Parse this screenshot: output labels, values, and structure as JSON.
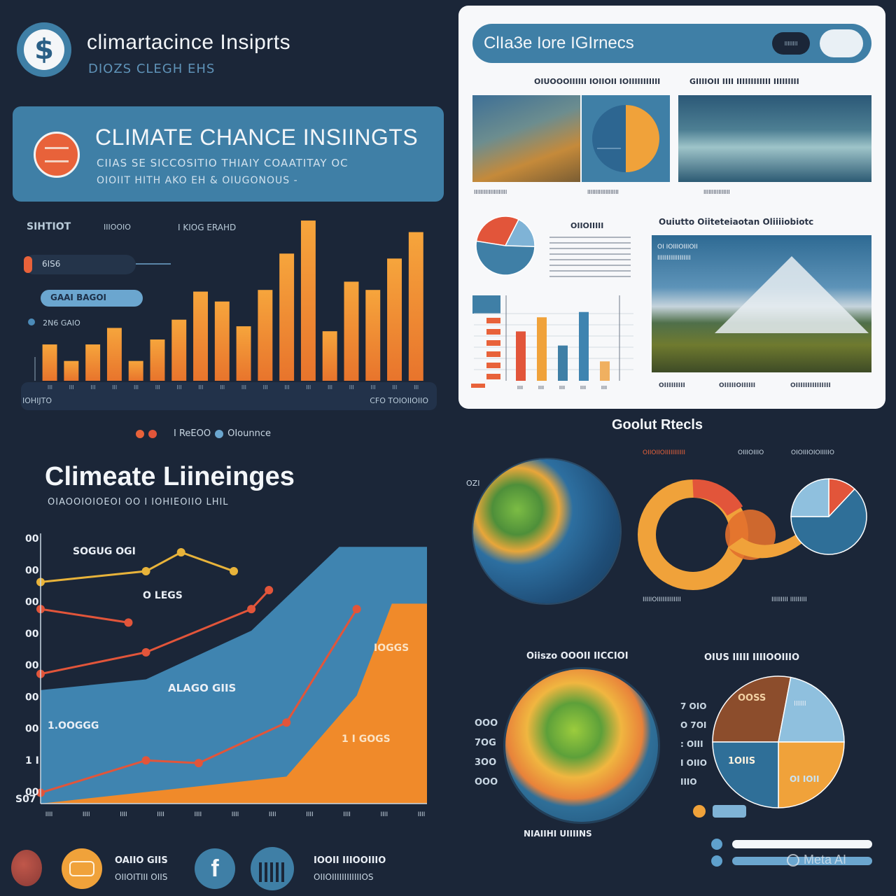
{
  "brand": {
    "title": "climartacince Insiprts",
    "subtitle": "DIOZS CLEGH EHS",
    "logo_icon": "dollar-globe-icon"
  },
  "banner": {
    "title": "CLIMATE CHANCE INSIINGTS",
    "line1": "CIIAS SE SICCOSITIO THIAIY COAATITAY OC",
    "line2": "OIOIIT HITH AKO EH & OIUGONOUS -"
  },
  "bar_panel": {
    "labels": [
      "SIHTIOT",
      "IIIOOIO",
      "I KIOG ERAHD",
      "6IS6",
      "GAAI BAGOI",
      "2N6 GAIO"
    ],
    "footer_left": "IOHIJTO",
    "footer_right": "CFO TOIOIIOIIO"
  },
  "legend_row": {
    "text": "I ReEOO",
    "text2": "OIounnce"
  },
  "lines_section": {
    "title": "Climeate Liineinges",
    "subtitle": "OIAOOIOIOEOI OO I IOHIEOIIO LHIL",
    "label_top": "SOGUG OGI",
    "label_mid": "O LEGS",
    "label_area_blue": "ALAGO GIIS",
    "label_area_left": "1.OOGGG",
    "label_area_orange_top": "IOGGS",
    "label_area_orange_bot": "1 I GOGS",
    "ytick_bottom": "S07"
  },
  "report_card": {
    "header": "ClIa3e Iore IGIrnecs",
    "pill_left": "IIIIIIII",
    "caption1": "OIUOOOIIIIII IOIIOII IOIIIIIIIIIII",
    "caption2": "GIIIIOII IIII IIIIIIIIIIII IIIIIIIII",
    "small1": "IIIIIIIIIIIIIIIIIIII",
    "small2": "IIIIIIIIIIIIIIIIIII",
    "small3": "IIIIIIIIIIIIIIII",
    "pie_title": "OIIOIIIII",
    "section_title": "Ouiutto Oiiteteiaotan Oliiiiobiotc",
    "mountain_cap1": "OI IOIIIOIIIOII",
    "mountain_cap2": "IIIIIIIIIIIIIIIIII",
    "foot1": "OIIIIIIIII",
    "foot2": "OIIIIIOIIIIII",
    "foot3": "OIIIIIIIIIIIIIII"
  },
  "global_section": {
    "title": "Goolut Rtecls",
    "top_label1": "OIIOIIOIIIIIIIIIII",
    "top_label2": "OIIIOIIIO",
    "top_label3": "OIOIIIOIOIIIIIO",
    "sub_label1": "IIIIIOIIIIIIIIIIIII",
    "sub_label2": "IIIIIIIII IIIIIIIII",
    "globe_title": "Oiiszo OOOII IICCIOI",
    "globe_foot": "NIAIIHI UIIIINS",
    "pie_title": "OIUS IIIII IIIIOOIIIO",
    "globe_left_tick": "OZI",
    "pie2_label_tl": "OOSS",
    "pie2_label_tr": "IIIIII",
    "pie2_label_bl": "1OIIS",
    "pie2_label_br": "OI IOII"
  },
  "footer": {
    "item1_a": "OAIIO GIIS",
    "item1_b": "OIIOITIII OIIS",
    "item2_a": "IOOII IIIOOIIIO",
    "item2_b": "OIIOIIIIIIIIIIIIOS",
    "watermark": "Meta AI"
  },
  "chart_data": [
    {
      "type": "bar",
      "categories": [
        "",
        "",
        "",
        "",
        "",
        "",
        "",
        "",
        "",
        "",
        "",
        "",
        "",
        "",
        "",
        "",
        "",
        ""
      ],
      "values": [
        22,
        12,
        22,
        32,
        12,
        25,
        37,
        54,
        48,
        33,
        55,
        77,
        97,
        30,
        60,
        55,
        74,
        90
      ],
      "ylim": [
        0,
        100
      ]
    },
    {
      "type": "line",
      "xlabel": "",
      "ylabel": "",
      "yticks": [
        "00",
        "00",
        "00",
        "00",
        "00",
        "00",
        "00",
        "1 I",
        "00"
      ],
      "xticks": [
        "IIII",
        "IIII",
        "IIII",
        "IIII",
        "IIII",
        "IIII",
        "IIII",
        "IIII",
        "IIII",
        "IIII",
        "IIII"
      ],
      "series": [
        {
          "color": "#e8b33a",
          "values": [
            [
              0,
              82
            ],
            [
              3,
              86
            ],
            [
              4,
              93
            ],
            [
              5.5,
              86
            ]
          ]
        },
        {
          "color": "#e2553a",
          "values": [
            [
              0,
              72
            ],
            [
              2.5,
              67
            ]
          ]
        },
        {
          "color": "#e2553a",
          "values": [
            [
              0,
              48
            ],
            [
              3,
              56
            ],
            [
              6,
              72
            ],
            [
              6.5,
              79
            ]
          ]
        },
        {
          "color": "#e2553a",
          "values": [
            [
              0,
              4
            ],
            [
              3,
              16
            ],
            [
              4.5,
              15
            ],
            [
              7,
              30
            ],
            [
              9,
              72
            ]
          ]
        }
      ],
      "areas": [
        {
          "color": "#3f84b0",
          "values": [
            [
              0,
              42
            ],
            [
              3,
              46
            ],
            [
              6,
              64
            ],
            [
              8.5,
              95
            ],
            [
              11,
              95
            ],
            [
              11,
              0
            ],
            [
              0,
              0
            ]
          ]
        },
        {
          "color": "#f08a2a",
          "values": [
            [
              0,
              0
            ],
            [
              7,
              10
            ],
            [
              9,
              40
            ],
            [
              10,
              74
            ],
            [
              11,
              74
            ],
            [
              11,
              0
            ]
          ]
        }
      ],
      "ylim": [
        0,
        100
      ]
    },
    {
      "type": "bar",
      "categories": [
        "IIII",
        "IIII",
        "IIII",
        "IIII",
        "IIII"
      ],
      "values": [
        56,
        72,
        40,
        78,
        22
      ],
      "ylim": [
        0,
        100
      ]
    },
    {
      "type": "pie",
      "values": [
        30,
        18,
        52
      ],
      "colors": [
        "#e2553a",
        "#7fb3d6",
        "#3f7fa6"
      ]
    },
    {
      "type": "pie",
      "values": [
        28,
        22,
        25,
        25
      ],
      "colors": [
        "#8c4d2c",
        "#8fc0de",
        "#f0a23a",
        "#2f6f98"
      ]
    },
    {
      "type": "pie",
      "values": [
        12,
        63,
        25
      ],
      "colors": [
        "#e2553a",
        "#2f6f98",
        "#8fc0de"
      ]
    }
  ]
}
